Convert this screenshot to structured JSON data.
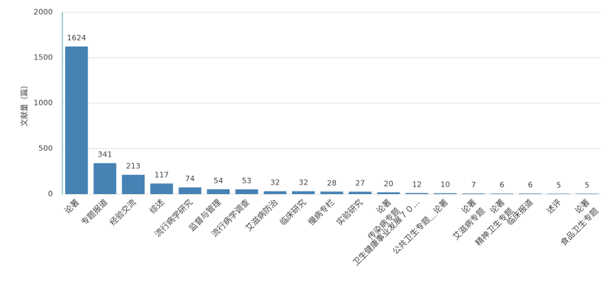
{
  "chart_data": {
    "type": "bar",
    "y_label": "文献量（篇）",
    "categories": [
      "论著",
      "专题报道",
      "经验交流",
      "综述",
      "流行病学研究",
      "监督与管理",
      "流行病学调查",
      "艾滋病防治",
      "临床研究",
      "慢病专栏",
      "实验研究",
      [
        "论著",
        "传染病专题"
      ],
      "卫生健康事业发展７０...",
      "公共卫生专题＿论著",
      [
        "论著",
        "艾滋病专题"
      ],
      [
        "论著",
        "精神卫生专题"
      ],
      "临床报道",
      "述评",
      [
        "论著",
        "食品卫生专题"
      ]
    ],
    "values": [
      1624,
      341,
      213,
      117,
      74,
      54,
      53,
      32,
      32,
      28,
      27,
      20,
      12,
      10,
      7,
      6,
      6,
      5,
      5
    ],
    "color": "#4682b4",
    "ylim": [
      0,
      2000
    ],
    "yticks": [
      0,
      500,
      1000,
      1500,
      2000
    ],
    "grid": true
  }
}
